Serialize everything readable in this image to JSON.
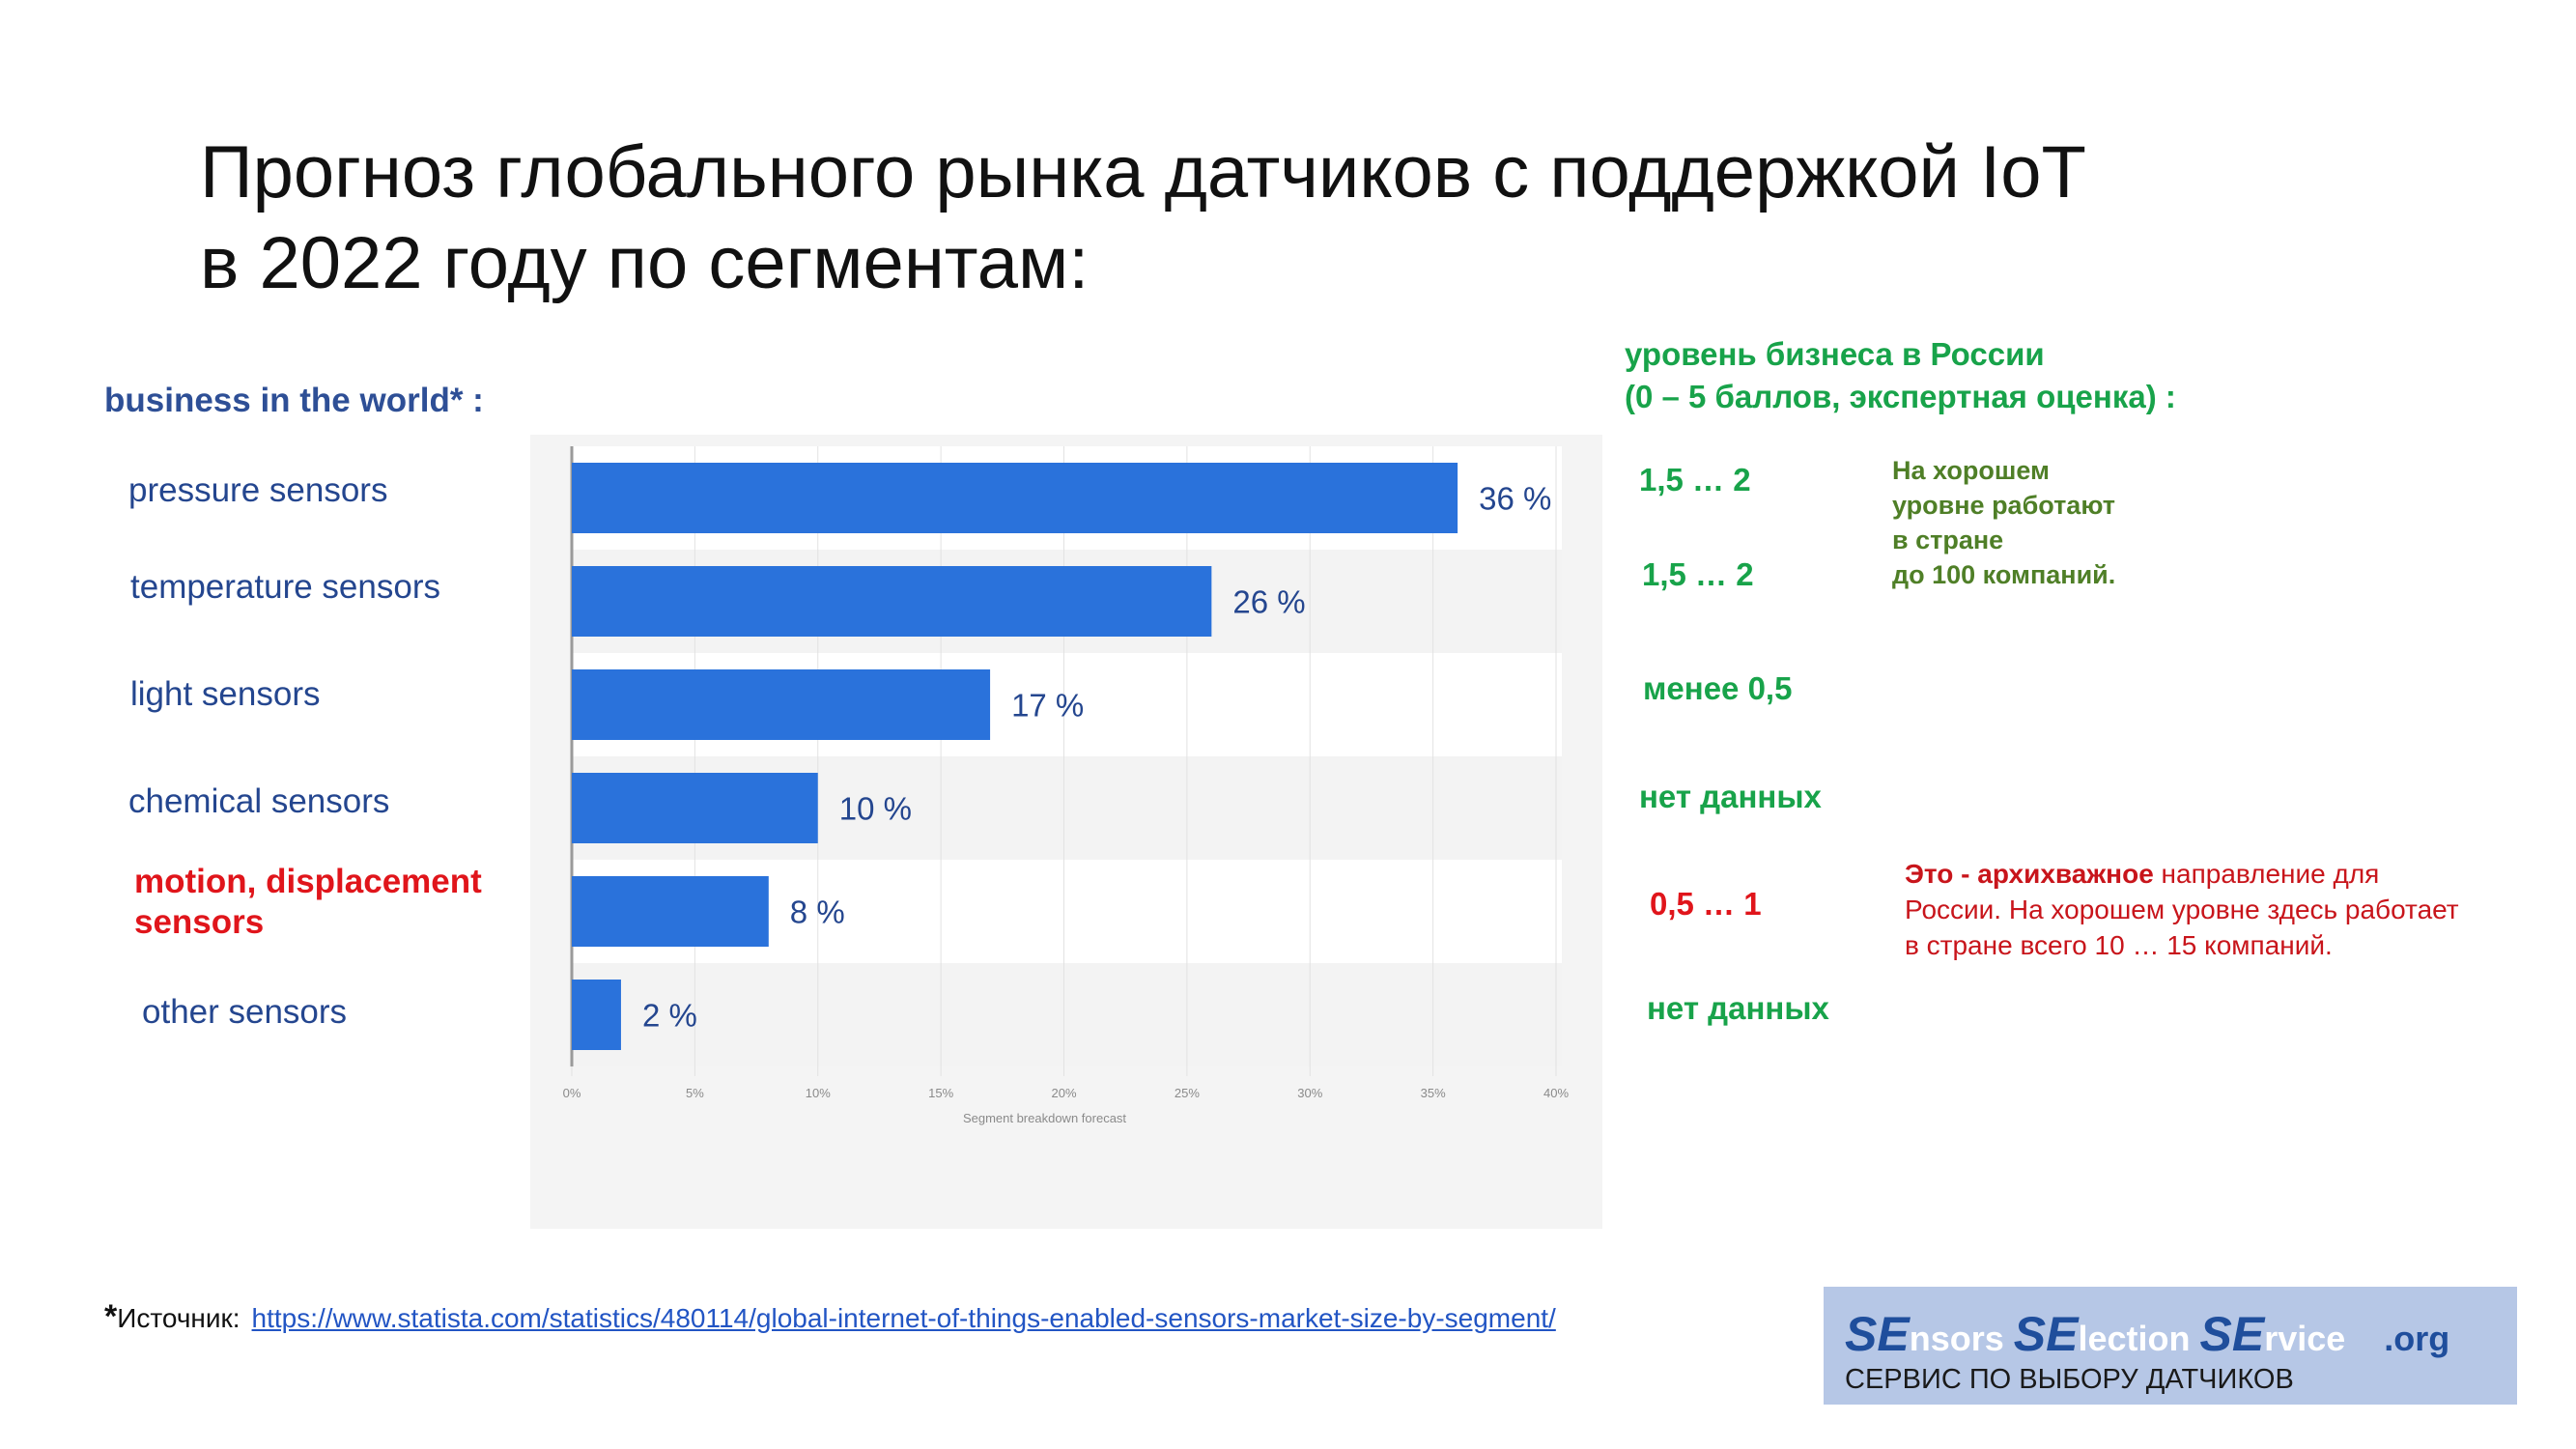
{
  "title_line1": "Прогноз глобального рынка датчиков с поддержкой IoT",
  "title_line2": "в 2022 году по сегментам:",
  "world_label": "business in the world* :",
  "chart_data": {
    "type": "bar",
    "orientation": "horizontal",
    "categories": [
      "pressure sensors",
      "temperature sensors",
      "light sensors",
      "chemical sensors",
      "motion, displacement sensors",
      "other sensors"
    ],
    "values": [
      36,
      26,
      17,
      10,
      8,
      2
    ],
    "value_labels": [
      "36 %",
      "26 %",
      "17 %",
      "10 %",
      "8 %",
      "2 %"
    ],
    "xlabel": "Segment breakdown forecast",
    "xticks": [
      "0%",
      "5%",
      "10%",
      "15%",
      "20%",
      "25%",
      "30%",
      "35%",
      "40%"
    ],
    "xlim": [
      0,
      40
    ],
    "bar_color": "#2a72db",
    "grid": true,
    "highlight_category": "motion, displacement sensors"
  },
  "category_label_line1_red": "motion, displacement",
  "category_label_line2_red": "sensors",
  "russia": {
    "heading_line1": "уровень бизнеса в России",
    "heading_line2": "(0 – 5 баллов, экспертная оценка) :",
    "values": [
      "1,5 … 2",
      "1,5 … 2",
      "менее 0,5",
      "нет данных",
      "0,5 … 1",
      "нет данных"
    ]
  },
  "note_green": {
    "line1": "На хорошем",
    "line2": "уровне работают",
    "line3": "в стране",
    "line4": "до 100 компаний."
  },
  "note_red": {
    "bold": "Это - архихважное",
    "rest1": " направление для",
    "line2": "России. На хорошем уровне здесь работает",
    "line3": "в стране всего 10 … 15 компаний."
  },
  "source": {
    "star": "*",
    "label": "Источник:",
    "url": "https://www.statista.com/statistics/480114/global-internet-of-things-enabled-sensors-market-size-by-segment/"
  },
  "logo": {
    "se1": "SE",
    "t1": "nsors ",
    "se2": "SE",
    "t2": "lection ",
    "se3": "SE",
    "t3": "rvice",
    "org": ".org",
    "subtitle": "СЕРВИС ПО ВЫБОРУ ДАТЧИКОВ"
  },
  "colors": {
    "title": "#111111",
    "category_text": "#24468f",
    "highlight_red": "#e0151b",
    "russia_green": "#18a34a",
    "note_green": "#4f7f27",
    "logo_bg": "#b6c7e6"
  }
}
